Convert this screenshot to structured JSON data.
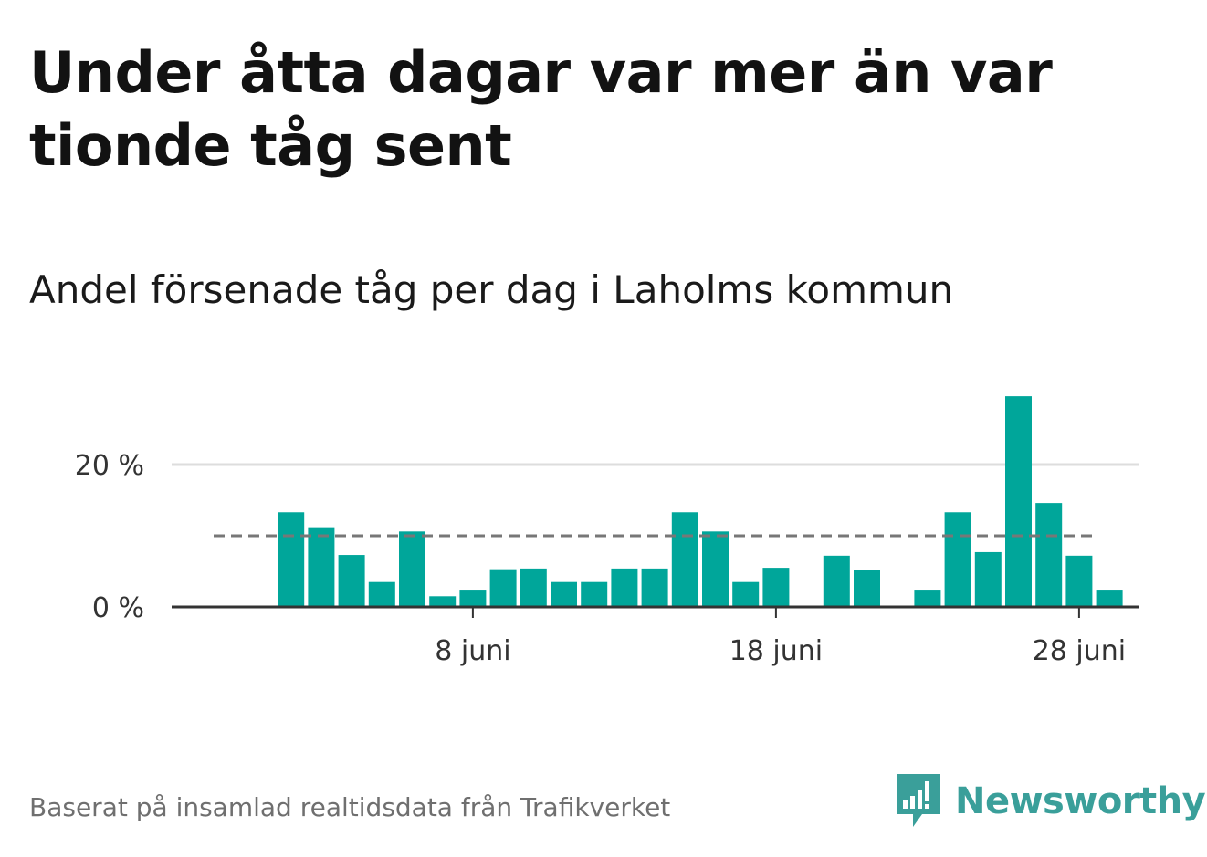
{
  "title": "Under åtta dagar var mer än var tionde tåg sent",
  "subtitle": "Andel försenade tåg per dag i Laholms kommun",
  "source": "Baserat på insamlad realtidsdata från Trafikverket",
  "brand": {
    "name": "Newsworthy",
    "logo_icon": "newsworthy-chart-bubble-icon"
  },
  "colors": {
    "bar": "#00a69a",
    "reference_line": "#777777",
    "grid": "#dddddd",
    "axis": "#333333",
    "brand": "#3a9f9a"
  },
  "chart_data": {
    "type": "bar",
    "x_start_day": 1,
    "values": [
      null,
      13.3,
      11.2,
      7.3,
      3.5,
      10.6,
      1.5,
      2.3,
      5.3,
      5.4,
      3.5,
      3.5,
      5.4,
      5.4,
      13.3,
      10.6,
      3.5,
      5.5,
      null,
      7.2,
      5.2,
      null,
      2.3,
      13.3,
      7.7,
      29.6,
      14.6,
      7.2,
      2.3
    ],
    "reference_line": 10,
    "ylim": [
      0,
      30
    ],
    "yticks": [
      {
        "value": 0,
        "label": "0 %"
      },
      {
        "value": 20,
        "label": "20 %"
      }
    ],
    "xticks": [
      {
        "day": 8,
        "label": "8 juni"
      },
      {
        "day": 18,
        "label": "18 juni"
      },
      {
        "day": 28,
        "label": "28 juni"
      }
    ],
    "grid": true
  }
}
